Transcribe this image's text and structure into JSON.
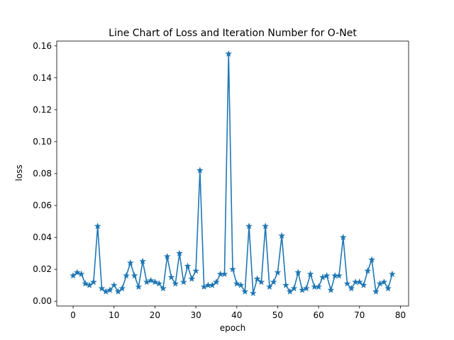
{
  "chart_data": {
    "type": "line",
    "title": "Line Chart of Loss and Iteration Number for O-Net",
    "xlabel": "epoch",
    "ylabel": "loss",
    "xlim": [
      -4,
      82
    ],
    "ylim": [
      -0.003,
      0.163
    ],
    "xticks": [
      0,
      10,
      20,
      30,
      40,
      50,
      60,
      70,
      80
    ],
    "yticks": [
      0.0,
      0.02,
      0.04,
      0.06,
      0.08,
      0.1,
      0.12,
      0.14,
      0.16
    ],
    "xtick_labels": [
      "0",
      "10",
      "20",
      "30",
      "40",
      "50",
      "60",
      "70",
      "80"
    ],
    "ytick_labels": [
      "0.00",
      "0.02",
      "0.04",
      "0.06",
      "0.08",
      "0.10",
      "0.12",
      "0.14",
      "0.16"
    ],
    "grid": false,
    "marker": "star",
    "colors": {
      "line": "#1f77b4"
    },
    "series": [
      {
        "x": [
          0,
          1,
          2,
          3,
          4,
          5,
          6,
          7,
          8,
          9,
          10,
          11,
          12,
          13,
          14,
          15,
          16,
          17,
          18,
          19,
          20,
          21,
          22,
          23,
          24,
          25,
          26,
          27,
          28,
          29,
          30,
          31,
          32,
          33,
          34,
          35,
          36,
          37,
          38,
          39,
          40,
          41,
          42,
          43,
          44,
          45,
          46,
          47,
          48,
          49,
          50,
          51,
          52,
          53,
          54,
          55,
          56,
          57,
          58,
          59,
          60,
          61,
          62,
          63,
          64,
          65,
          66,
          67,
          68,
          69,
          70,
          71,
          72,
          73,
          74,
          75,
          76,
          77,
          78
        ],
        "values": [
          0.016,
          0.018,
          0.017,
          0.011,
          0.01,
          0.012,
          0.047,
          0.008,
          0.006,
          0.007,
          0.01,
          0.006,
          0.008,
          0.016,
          0.024,
          0.016,
          0.009,
          0.025,
          0.012,
          0.013,
          0.012,
          0.011,
          0.008,
          0.028,
          0.015,
          0.011,
          0.03,
          0.012,
          0.022,
          0.014,
          0.019,
          0.082,
          0.009,
          0.01,
          0.01,
          0.012,
          0.017,
          0.017,
          0.155,
          0.02,
          0.011,
          0.01,
          0.006,
          0.047,
          0.005,
          0.014,
          0.012,
          0.047,
          0.009,
          0.012,
          0.018,
          0.041,
          0.01,
          0.006,
          0.008,
          0.018,
          0.007,
          0.008,
          0.017,
          0.009,
          0.009,
          0.015,
          0.016,
          0.007,
          0.016,
          0.016,
          0.04,
          0.011,
          0.008,
          0.012,
          0.012,
          0.01,
          0.019,
          0.026,
          0.006,
          0.011,
          0.012,
          0.008,
          0.017
        ]
      }
    ]
  }
}
